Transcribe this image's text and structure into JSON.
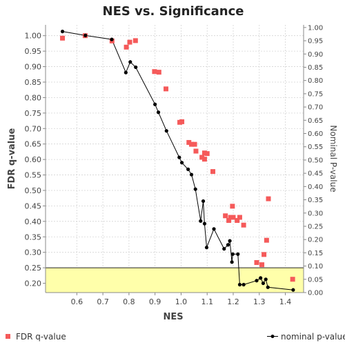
{
  "chart_data": {
    "type": "scatter",
    "title": "NES vs. Significance",
    "xlabel": "NES",
    "ylabel_left": "FDR q-value",
    "ylabel_right": "Nominal P-value",
    "xlim": [
      0.48,
      1.47
    ],
    "ylim_left": [
      0.17,
      1.035
    ],
    "ylim_right": [
      0.0,
      1.01
    ],
    "x_ticks": [
      "0.6",
      "0.7",
      "0.8",
      "0.9",
      "1.0",
      "1.1",
      "1.2",
      "1.3",
      "1.4"
    ],
    "y_ticks_left": [
      "0.20",
      "0.25",
      "0.30",
      "0.35",
      "0.40",
      "0.45",
      "0.50",
      "0.55",
      "0.60",
      "0.65",
      "0.70",
      "0.75",
      "0.80",
      "0.85",
      "0.90",
      "0.95",
      "1.00"
    ],
    "y_ticks_right": [
      "0.00",
      "0.05",
      "0.10",
      "0.15",
      "0.20",
      "0.25",
      "0.30",
      "0.35",
      "0.40",
      "0.45",
      "0.50",
      "0.55",
      "0.60",
      "0.65",
      "0.70",
      "0.75",
      "0.80",
      "0.85",
      "0.90",
      "0.95",
      "1.00"
    ],
    "highlight_region": {
      "y_left_max": 0.25,
      "color": "#ffffaa"
    },
    "grid": true,
    "legend_position": "bottom",
    "series": [
      {
        "name": "FDR q-value",
        "axis": "left",
        "marker": "square",
        "color": "#f55a5a",
        "points": [
          [
            0.545,
            0.992
          ],
          [
            0.632,
            1.0
          ],
          [
            0.735,
            0.983
          ],
          [
            0.79,
            0.963
          ],
          [
            0.803,
            0.979
          ],
          [
            0.825,
            0.984
          ],
          [
            0.898,
            0.884
          ],
          [
            0.915,
            0.882
          ],
          [
            0.942,
            0.828
          ],
          [
            0.995,
            0.72
          ],
          [
            1.003,
            0.722
          ],
          [
            1.03,
            0.655
          ],
          [
            1.04,
            0.649
          ],
          [
            1.052,
            0.649
          ],
          [
            1.057,
            0.627
          ],
          [
            1.08,
            0.607
          ],
          [
            1.09,
            0.601
          ],
          [
            1.09,
            0.621
          ],
          [
            1.1,
            0.619
          ],
          [
            1.122,
            0.561
          ],
          [
            1.17,
            0.418
          ],
          [
            1.183,
            0.403
          ],
          [
            1.19,
            0.413
          ],
          [
            1.197,
            0.449
          ],
          [
            1.2,
            0.413
          ],
          [
            1.215,
            0.403
          ],
          [
            1.225,
            0.413
          ],
          [
            1.24,
            0.388
          ],
          [
            1.29,
            0.267
          ],
          [
            1.31,
            0.26
          ],
          [
            1.318,
            0.293
          ],
          [
            1.328,
            0.339
          ],
          [
            1.335,
            0.473
          ],
          [
            1.428,
            0.213
          ]
        ]
      },
      {
        "name": "nominal p-value",
        "axis": "right",
        "marker": "circle-line",
        "color": "#000000",
        "points": [
          [
            0.545,
            0.985
          ],
          [
            0.633,
            0.97
          ],
          [
            0.734,
            0.955
          ],
          [
            0.788,
            0.83
          ],
          [
            0.805,
            0.87
          ],
          [
            0.826,
            0.85
          ],
          [
            0.9,
            0.71
          ],
          [
            0.913,
            0.68
          ],
          [
            0.944,
            0.61
          ],
          [
            0.993,
            0.51
          ],
          [
            1.003,
            0.49
          ],
          [
            1.027,
            0.465
          ],
          [
            1.04,
            0.445
          ],
          [
            1.055,
            0.39
          ],
          [
            1.075,
            0.27
          ],
          [
            1.085,
            0.345
          ],
          [
            1.09,
            0.26
          ],
          [
            1.098,
            0.17
          ],
          [
            1.126,
            0.24
          ],
          [
            1.165,
            0.165
          ],
          [
            1.18,
            0.18
          ],
          [
            1.187,
            0.195
          ],
          [
            1.195,
            0.115
          ],
          [
            1.198,
            0.145
          ],
          [
            1.218,
            0.145
          ],
          [
            1.225,
            0.03
          ],
          [
            1.24,
            0.03
          ],
          [
            1.29,
            0.045
          ],
          [
            1.305,
            0.055
          ],
          [
            1.315,
            0.035
          ],
          [
            1.325,
            0.05
          ],
          [
            1.333,
            0.02
          ],
          [
            1.43,
            0.01
          ]
        ]
      }
    ]
  }
}
